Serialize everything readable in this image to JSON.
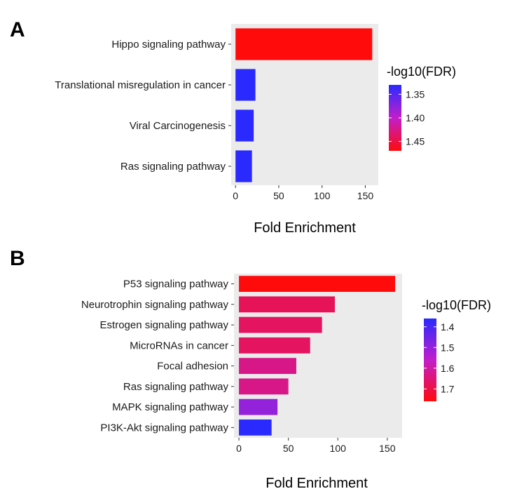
{
  "chart_data": [
    {
      "panel": "A",
      "type": "bar",
      "orientation": "horizontal",
      "categories": [
        "Hippo signaling pathway",
        "Translational misregulation in cancer",
        "Viral Carcinogenesis",
        "Ras signaling pathway"
      ],
      "values": [
        158,
        23,
        21,
        19
      ],
      "color_values": [
        1.47,
        1.33,
        1.33,
        1.33
      ],
      "xlabel": "Fold Enrichment",
      "ylabel": "",
      "xlim": [
        -5,
        165
      ],
      "xticks": [
        "0",
        "50",
        "100",
        "150"
      ],
      "legend": {
        "title": "-log10(FDR)",
        "ticks": [
          "1.35",
          "1.40",
          "1.45"
        ],
        "range": [
          1.33,
          1.47
        ],
        "low_color": "#2a2aff",
        "high_color": "#ff0b0b",
        "position": "right"
      },
      "grid": false,
      "panel_background": "#ebebeb"
    },
    {
      "panel": "B",
      "type": "bar",
      "orientation": "horizontal",
      "categories": [
        "P53 signaling pathway",
        "Neurotrophin signaling pathway",
        "Estrogen signaling pathway",
        "MicroRNAs in cancer",
        "Focal adhesion",
        "Ras signaling pathway",
        "MAPK signaling pathway",
        "PI3K-Akt signaling pathway"
      ],
      "values": [
        158,
        97,
        84,
        72,
        58,
        50,
        39,
        33
      ],
      "color_values": [
        1.76,
        1.68,
        1.67,
        1.67,
        1.63,
        1.63,
        1.5,
        1.36
      ],
      "xlabel": "Fold Enrichment",
      "ylabel": "",
      "xlim": [
        -5,
        165
      ],
      "xticks": [
        "0",
        "50",
        "100",
        "150"
      ],
      "legend": {
        "title": "-log10(FDR)",
        "ticks": [
          "1.4",
          "1.5",
          "1.6",
          "1.7"
        ],
        "range": [
          1.36,
          1.76
        ],
        "low_color": "#2a2aff",
        "high_color": "#ff0b0b",
        "position": "right"
      },
      "grid": false,
      "panel_background": "#ebebeb"
    }
  ]
}
